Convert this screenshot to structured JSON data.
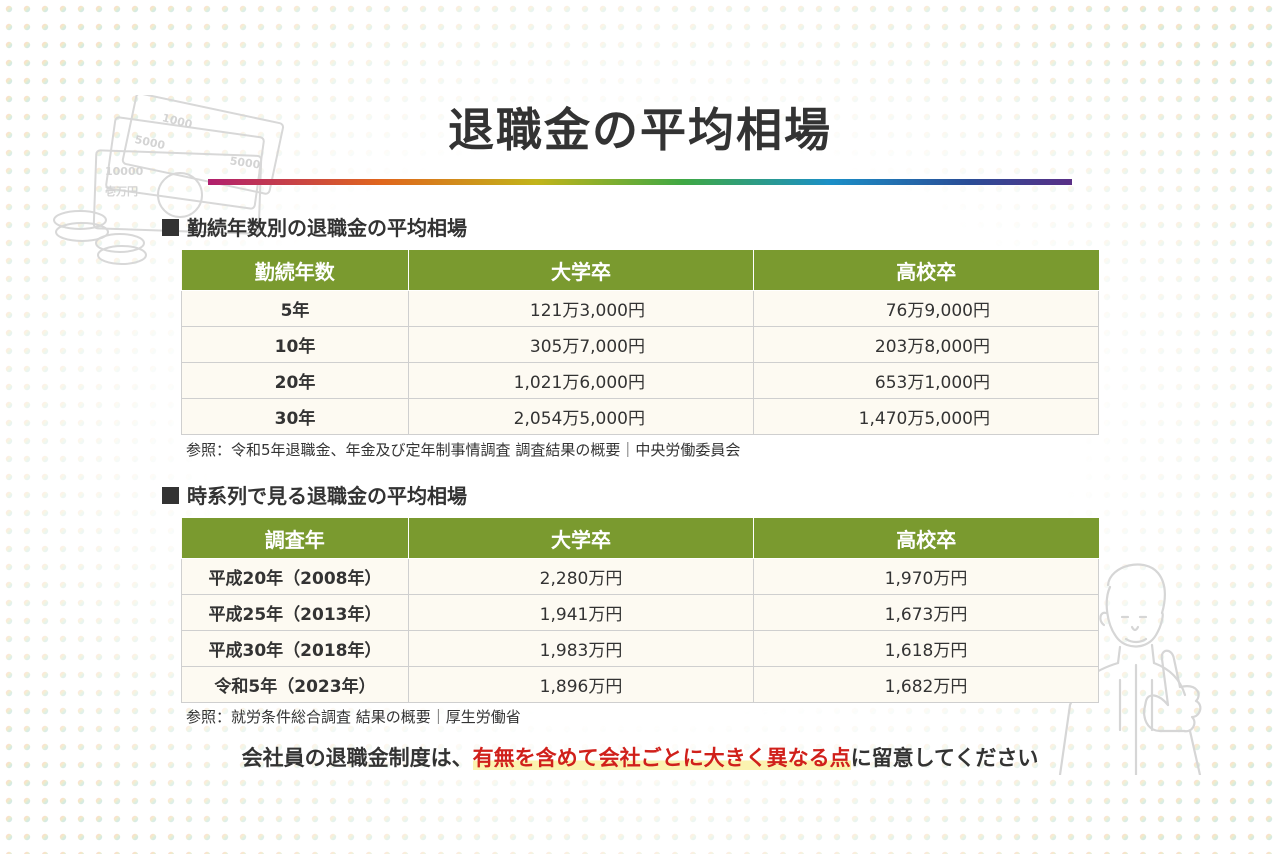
{
  "title": "退職金の平均相場",
  "colors": {
    "header_green": "#7a9a2f",
    "highlight_red": "#d0201b",
    "highlight_marker": "#fbf3b0",
    "text": "#333333"
  },
  "section1": {
    "heading": "勤続年数別の退職金の平均相場",
    "columns": [
      "勤続年数",
      "大学卒",
      "高校卒"
    ],
    "rows": [
      {
        "label": "5年",
        "univ": "121万3,000円",
        "high": "76万9,000円"
      },
      {
        "label": "10年",
        "univ": "305万7,000円",
        "high": "203万8,000円"
      },
      {
        "label": "20年",
        "univ": "1,021万6,000円",
        "high": "653万1,000円"
      },
      {
        "label": "30年",
        "univ": "2,054万5,000円",
        "high": "1,470万5,000円"
      }
    ],
    "note": "参照：令和5年退職金、年金及び定年制事情調査 調査結果の概要｜中央労働委員会"
  },
  "section2": {
    "heading": "時系列で見る退職金の平均相場",
    "columns": [
      "調査年",
      "大学卒",
      "高校卒"
    ],
    "rows": [
      {
        "label": "平成20年（2008年）",
        "univ": "2,280万円",
        "high": "1,970万円"
      },
      {
        "label": "平成25年（2013年）",
        "univ": "1,941万円",
        "high": "1,673万円"
      },
      {
        "label": "平成30年（2018年）",
        "univ": "1,983万円",
        "high": "1,618万円"
      },
      {
        "label": "令和5年（2023年）",
        "univ": "1,896万円",
        "high": "1,682万円"
      }
    ],
    "note": "参照：就労条件総合調査 結果の概要｜厚生労働省"
  },
  "footer": {
    "before": "会社員の退職金制度は、",
    "highlight": "有無を含めて会社ごとに大きく異なる点",
    "after": "に留意してください"
  },
  "decorations": {
    "banknote_values": [
      "5000",
      "1000",
      "10000",
      "5000"
    ],
    "banknote_caption": "壱万円",
    "left_icon": "money-bills-icon",
    "right_icon": "thumbs-up-man-icon"
  }
}
